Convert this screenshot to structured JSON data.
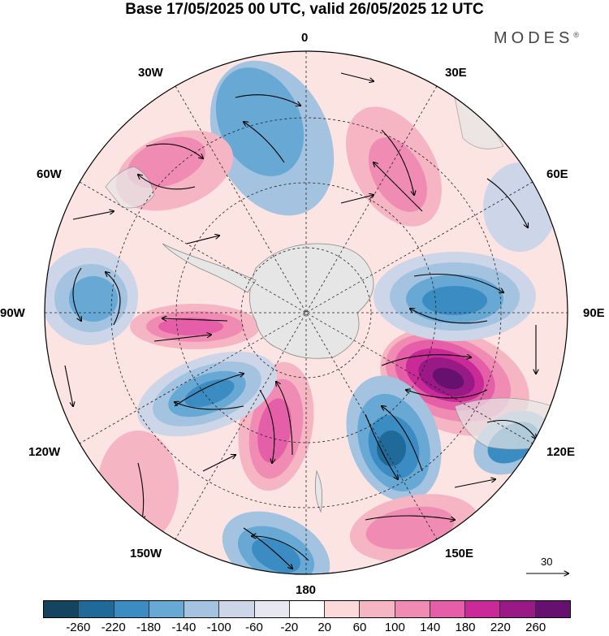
{
  "title": "Base 17/05/2025 00 UTC, valid 26/05/2025 12 UTC",
  "brand": {
    "name": "MODES",
    "mark": "®"
  },
  "map": {
    "projection": "south-polar-stereographic",
    "longitude_labels": {
      "top": "0",
      "bottom": "180",
      "left": "90W",
      "right": "90E",
      "upper_left_1": "30W",
      "upper_left_2": "60W",
      "upper_right_1": "30E",
      "upper_right_2": "60E",
      "lower_left_1": "120W",
      "lower_left_2": "150W",
      "lower_right_1": "120E",
      "lower_right_2": "150E"
    },
    "field": "anomaly (shaded) with wind vectors",
    "reference_vector": {
      "label": "30"
    }
  },
  "colorbar": {
    "colors": [
      "#15445f",
      "#1f6a99",
      "#3b8cc2",
      "#67a9d4",
      "#a3c3e0",
      "#cdd5e8",
      "#e7e7f2",
      "#ffffff",
      "#fbdad9",
      "#f6b5c2",
      "#f08cb4",
      "#e45ea8",
      "#c92a97",
      "#991a86",
      "#661070"
    ],
    "ticks": [
      "-260",
      "-220",
      "-180",
      "-140",
      "-100",
      "-60",
      "-20",
      "20",
      "60",
      "100",
      "140",
      "180",
      "220",
      "260"
    ]
  }
}
